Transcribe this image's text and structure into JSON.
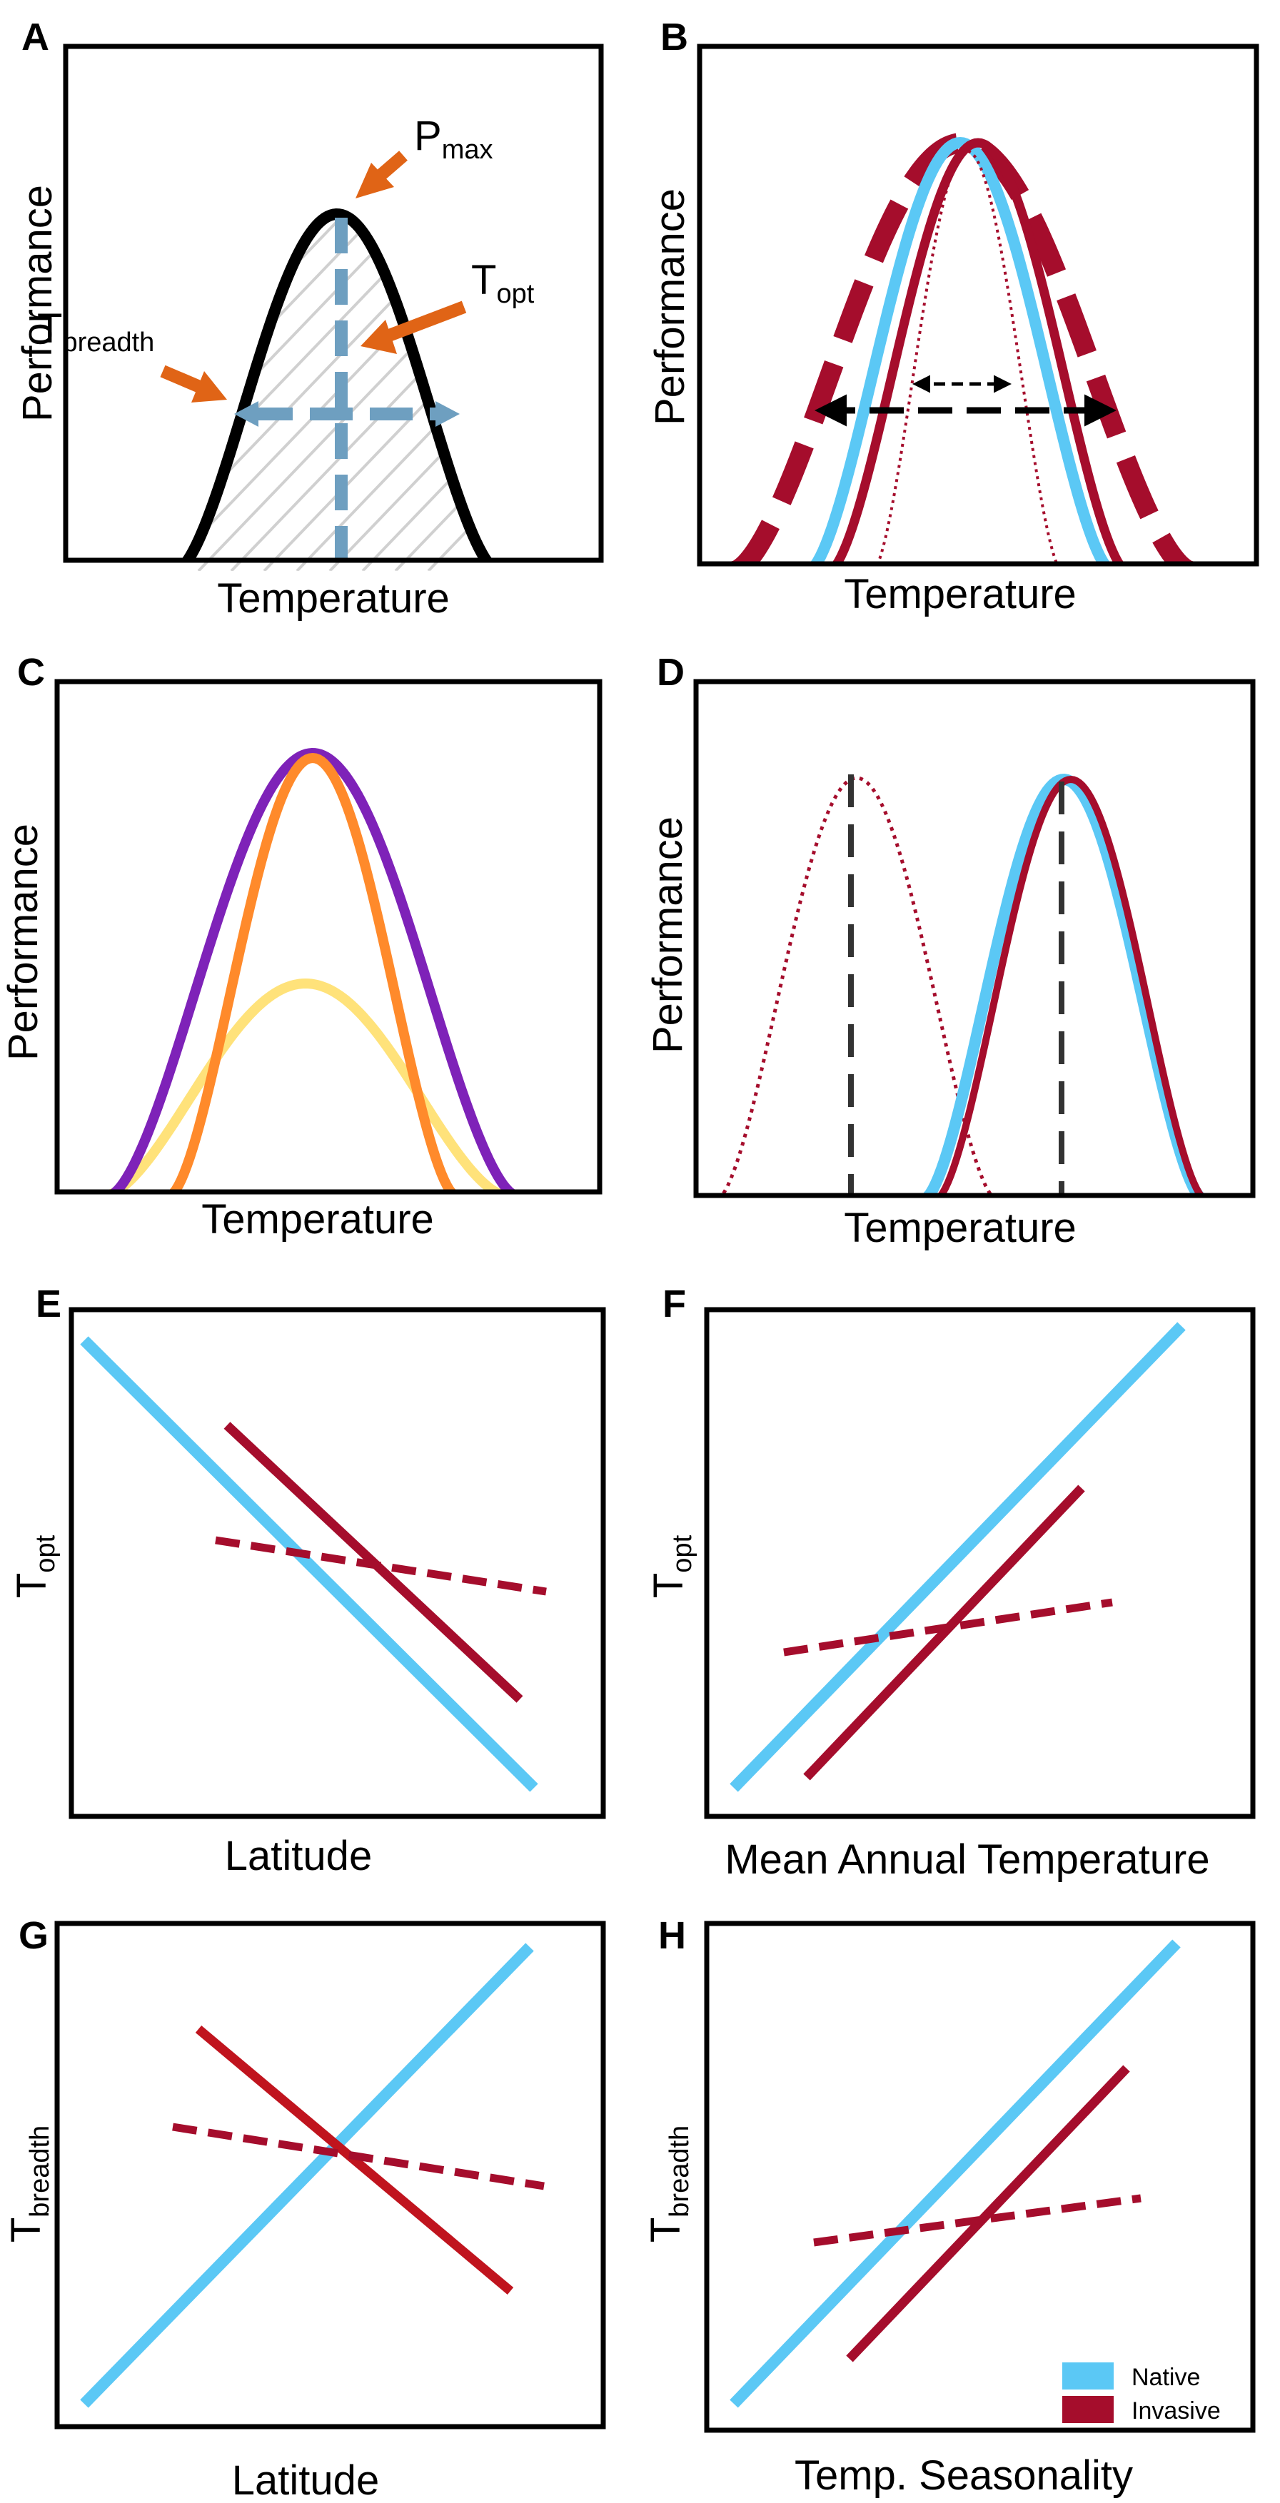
{
  "colors": {
    "native": "#5BC8F5",
    "invasive": "#A50D2C",
    "black": "#000000",
    "arrow_orange": "#E06416",
    "guide_blue": "#6E9FC0",
    "hatch": "#D0D0D0",
    "orange": "#FF8A2B",
    "purple": "#7E22B8",
    "yellow": "#FFE27A",
    "dash_gray": "#333333"
  },
  "panels": {
    "A": {
      "letter": "A",
      "xlabel": "Temperature",
      "ylabel": "Performance",
      "annotations": {
        "pmax_main": "P",
        "pmax_sub": "max",
        "topt_main": "T",
        "topt_sub": "opt",
        "tbreadth_main": "T",
        "tbreadth_sub": "breadth"
      }
    },
    "B": {
      "letter": "B",
      "xlabel": "Temperature",
      "ylabel": "Performance"
    },
    "C": {
      "letter": "C",
      "xlabel": "Temperature",
      "ylabel": "Performance"
    },
    "D": {
      "letter": "D",
      "xlabel": "Temperature",
      "ylabel": "Performance"
    },
    "E": {
      "letter": "E",
      "xlabel": "Latitude",
      "ylabel_main": "T",
      "ylabel_sub": "opt"
    },
    "F": {
      "letter": "F",
      "xlabel": "Mean Annual Temperature",
      "ylabel_main": "T",
      "ylabel_sub": "opt"
    },
    "G": {
      "letter": "G",
      "xlabel": "Latitude",
      "ylabel_main": "T",
      "ylabel_sub": "breadth"
    },
    "H": {
      "letter": "H",
      "xlabel": "Temp. Seasonality",
      "ylabel_main": "T",
      "ylabel_sub": "breadth"
    }
  },
  "legend": {
    "items": [
      {
        "label": "Native",
        "color": "#5BC8F5"
      },
      {
        "label": "Invasive",
        "color": "#A50D2C"
      }
    ]
  }
}
